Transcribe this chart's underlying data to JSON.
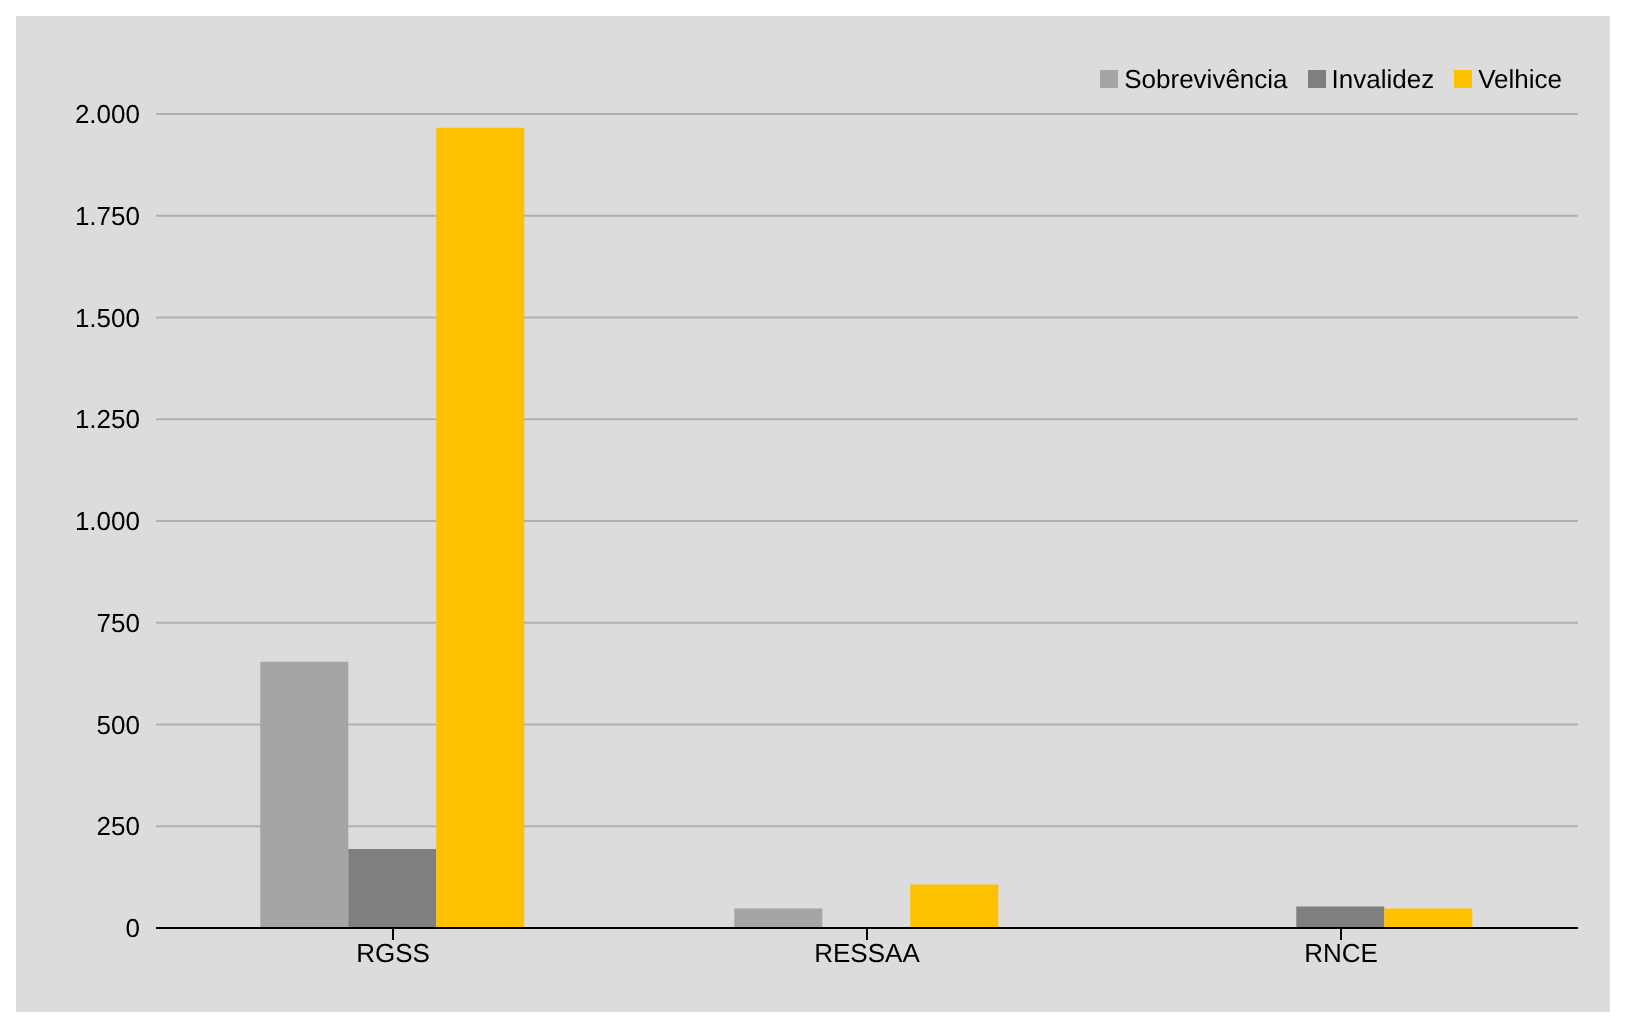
{
  "chart_data": {
    "type": "bar",
    "categories": [
      "RGSS",
      "RESSAA",
      "RNCE"
    ],
    "series": [
      {
        "name": "Sobrevivência",
        "color": "#a5a5a5",
        "values": [
          654,
          48,
          0
        ]
      },
      {
        "name": "Invalidez",
        "color": "#7f7f7f",
        "values": [
          194,
          null,
          53
        ]
      },
      {
        "name": "Velhice",
        "color": "#ffc000",
        "values": [
          1966,
          107,
          48
        ]
      }
    ],
    "ylim": [
      0,
      2000
    ],
    "yticks": [
      0,
      250,
      500,
      750,
      {
        "value": 1000,
        "label": "1.000"
      },
      {
        "value": 1250,
        "label": "1.250"
      },
      {
        "value": 1500,
        "label": "1.500"
      },
      {
        "value": 1750,
        "label": "1.750"
      },
      {
        "value": 2000,
        "label": "2.000"
      }
    ],
    "grid": "y",
    "legend": "top right"
  }
}
